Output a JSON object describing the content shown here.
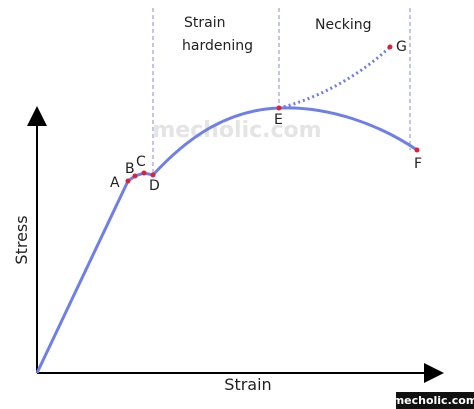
{
  "points": [
    {
      "label": "A"
    },
    {
      "label": "B"
    },
    {
      "label": "C"
    },
    {
      "label": "D"
    },
    {
      "label": "E"
    },
    {
      "label": "F"
    },
    {
      "label": "G"
    }
  ],
  "regions": [
    {
      "lines": [
        "Strain",
        "hardening"
      ]
    },
    {
      "lines": [
        "Necking"
      ]
    }
  ],
  "axes": {
    "x": "Strain",
    "y": "Stress"
  },
  "watermark": "mecholic.com",
  "footer": "mecholic.com"
}
